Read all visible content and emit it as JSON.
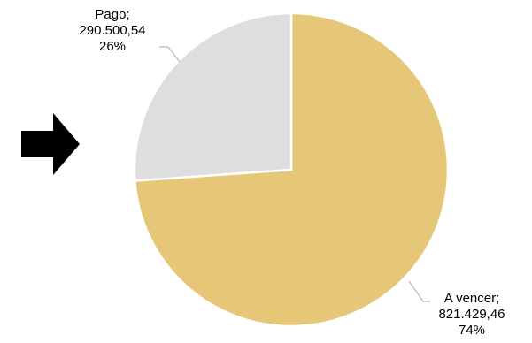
{
  "chart_data": {
    "type": "pie",
    "title": "",
    "slices": [
      {
        "name": "A vencer",
        "value_text": "821.429,46",
        "value": 821429.46,
        "percent_text": "74%",
        "percent": 74,
        "color": "#e6c677"
      },
      {
        "name": "Pago",
        "value_text": "290.500,54",
        "value": 290500.54,
        "percent_text": "26%",
        "percent": 26,
        "color": "#dedede"
      }
    ],
    "start_angle": "12 o'clock, clockwise",
    "label_position": "outside with leader lines",
    "legend": "none"
  },
  "decorations": {
    "arrow": {
      "icon": "arrow-right-icon",
      "color": "#000000"
    }
  }
}
